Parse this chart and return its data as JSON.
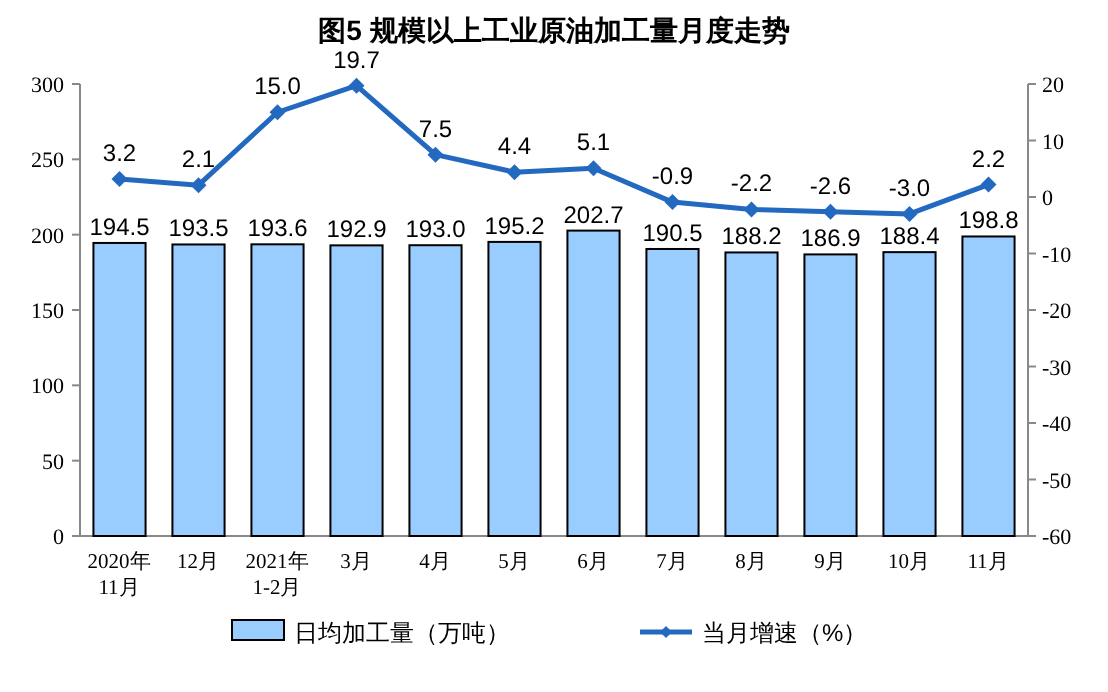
{
  "chart_data": {
    "type": "bar",
    "title": "图5  规模以上工业原油加工量月度走势",
    "categories": [
      "2020年\n11月",
      "12月",
      "2021年\n1-2月",
      "3月",
      "4月",
      "5月",
      "6月",
      "7月",
      "8月",
      "9月",
      "10月",
      "11月"
    ],
    "series": [
      {
        "name": "日均加工量（万吨）",
        "color": "#99ccff",
        "values": [
          194.5,
          193.5,
          193.6,
          192.9,
          193.0,
          195.2,
          202.7,
          190.5,
          188.2,
          186.9,
          188.4,
          198.8
        ],
        "value_labels": [
          "194.5",
          "193.5",
          "193.6",
          "192.9",
          "193.0",
          "195.2",
          "202.7",
          "190.5",
          "188.2",
          "186.9",
          "188.4",
          "198.8"
        ]
      },
      {
        "name": "当月增速（%）",
        "type": "line",
        "axis": "y2",
        "color": "#2469c0",
        "marker": "diamond",
        "values": [
          3.2,
          2.1,
          15.0,
          19.7,
          7.5,
          4.4,
          5.1,
          -0.9,
          -2.2,
          -2.6,
          -3.0,
          2.2
        ],
        "value_labels": [
          "3.2",
          "2.1",
          "15.0",
          "19.7",
          "7.5",
          "4.4",
          "5.1",
          "-0.9",
          "-2.2",
          "-2.6",
          "-3.0",
          "2.2"
        ]
      }
    ],
    "ylim": [
      0,
      300
    ],
    "yticks": [
      0,
      50,
      100,
      150,
      200,
      250,
      300
    ],
    "y2lim": [
      -60,
      20
    ],
    "y2ticks": [
      -60,
      -50,
      -40,
      -30,
      -20,
      -10,
      0,
      10,
      20
    ],
    "grid": false,
    "legend": "bottom"
  }
}
